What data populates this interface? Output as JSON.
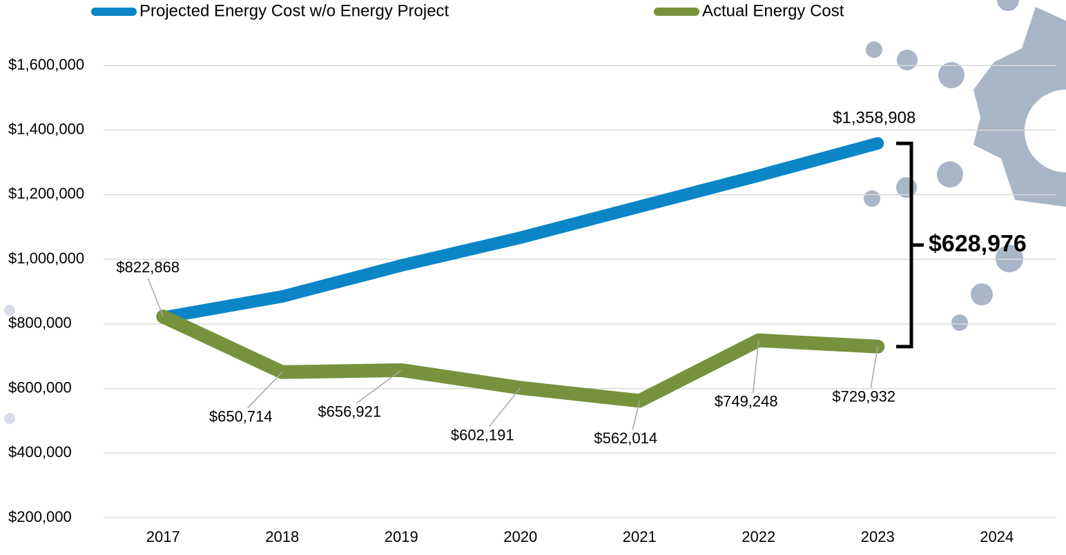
{
  "chart_data": {
    "type": "line",
    "categories": [
      "2017",
      "2018",
      "2019",
      "2020",
      "2021",
      "2022",
      "2023",
      "2024"
    ],
    "series": [
      {
        "name": "Projected Energy Cost w/o Energy Project",
        "color": "#0a86c7",
        "values": [
          820000,
          885000,
          981000,
          1067000,
          1163000,
          1259000,
          1358908,
          null
        ],
        "value_labels": [
          null,
          null,
          null,
          null,
          null,
          null,
          "$1,358,908",
          null
        ]
      },
      {
        "name": "Actual Energy Cost",
        "color": "#76923c",
        "values": [
          822868,
          650714,
          656921,
          602191,
          562014,
          749248,
          729932,
          null
        ],
        "value_labels": [
          "$822,868",
          "$650,714",
          "$656,921",
          "$602,191",
          "$562,014",
          "$749,248",
          "$729,932",
          null
        ]
      }
    ],
    "ylim": [
      200000,
      1600000
    ],
    "yticks": [
      {
        "value": 200000,
        "label": "$200,000"
      },
      {
        "value": 400000,
        "label": "$400,000"
      },
      {
        "value": 600000,
        "label": "$600,000"
      },
      {
        "value": 800000,
        "label": "$800,000"
      },
      {
        "value": 1000000,
        "label": "$1,000,000"
      },
      {
        "value": 1200000,
        "label": "$1,200,000"
      },
      {
        "value": 1400000,
        "label": "$1,400,000"
      },
      {
        "value": 1600000,
        "label": "$1,600,000"
      }
    ],
    "grid": true,
    "legend": "top",
    "annotation": "$628,976"
  }
}
